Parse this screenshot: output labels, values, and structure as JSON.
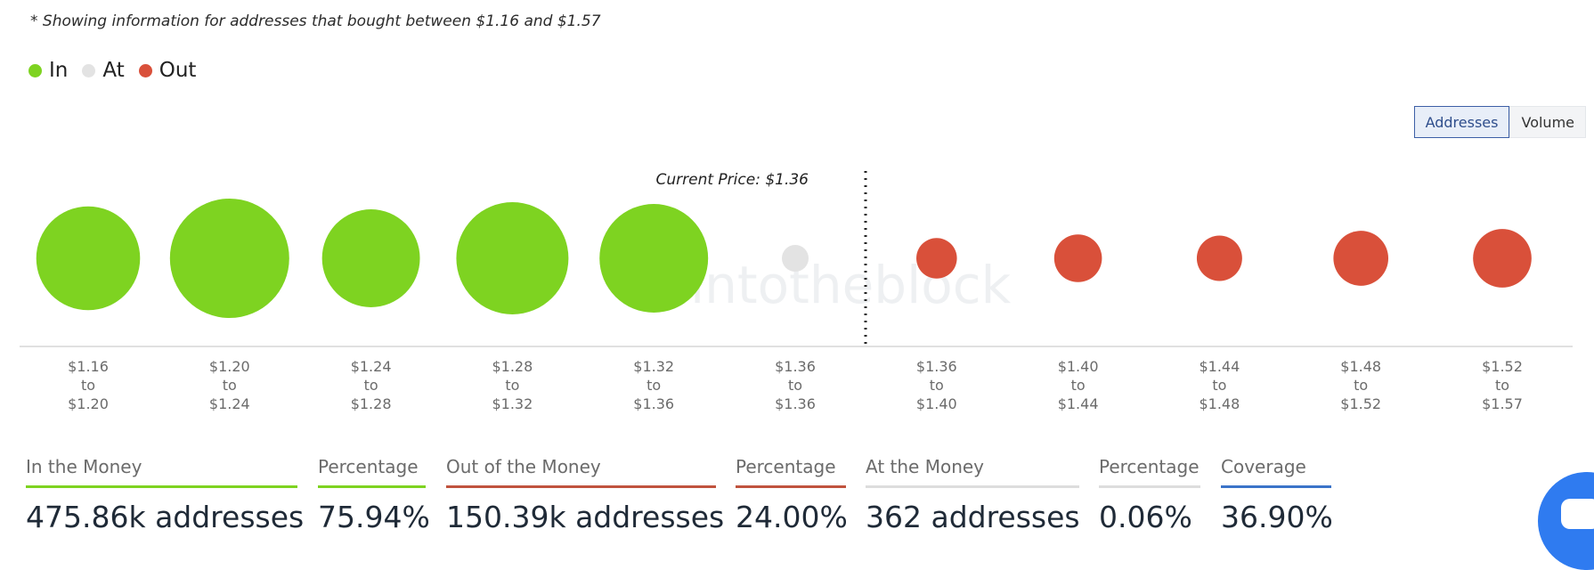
{
  "note": "* Showing information for addresses that bought between $1.16 and $1.57",
  "legend": [
    {
      "label": "In",
      "color": "#7ed321"
    },
    {
      "label": "At",
      "color": "#e3e3e3"
    },
    {
      "label": "Out",
      "color": "#d9503a"
    }
  ],
  "toggle": {
    "addresses_label": "Addresses",
    "volume_label": "Volume",
    "active": "addresses"
  },
  "watermark": "intotheblock",
  "chart_data": {
    "type": "bubble",
    "current_price_label": "Current Price: $1.36",
    "categories": [
      {
        "from": "$1.16",
        "to": "$1.20",
        "status": "in",
        "relative_size": 0.87
      },
      {
        "from": "$1.20",
        "to": "$1.24",
        "status": "in",
        "relative_size": 1.0
      },
      {
        "from": "$1.24",
        "to": "$1.28",
        "status": "in",
        "relative_size": 0.82
      },
      {
        "from": "$1.28",
        "to": "$1.32",
        "status": "in",
        "relative_size": 0.94
      },
      {
        "from": "$1.32",
        "to": "$1.36",
        "status": "in",
        "relative_size": 0.91
      },
      {
        "from": "$1.36",
        "to": "$1.36",
        "status": "at",
        "relative_size": 0.05
      },
      {
        "from": "$1.36",
        "to": "$1.40",
        "status": "out",
        "relative_size": 0.34
      },
      {
        "from": "$1.40",
        "to": "$1.44",
        "status": "out",
        "relative_size": 0.4
      },
      {
        "from": "$1.44",
        "to": "$1.48",
        "status": "out",
        "relative_size": 0.38
      },
      {
        "from": "$1.48",
        "to": "$1.52",
        "status": "out",
        "relative_size": 0.46
      },
      {
        "from": "$1.52",
        "to": "$1.57",
        "status": "out",
        "relative_size": 0.49
      }
    ],
    "tick_word": "to",
    "current_price_index": 6
  },
  "summary": [
    {
      "label": "In the Money",
      "value": "475.86k addresses",
      "color": "#7ed321"
    },
    {
      "label": "Percentage",
      "value": "75.94%",
      "color": "#7ed321"
    },
    {
      "label": "Out of the Money",
      "value": "150.39k addresses",
      "color": "#c0533e"
    },
    {
      "label": "Percentage",
      "value": "24.00%",
      "color": "#c0533e"
    },
    {
      "label": "At the Money",
      "value": "362 addresses",
      "color": "#dddddd"
    },
    {
      "label": "Percentage",
      "value": "0.06%",
      "color": "#dddddd"
    },
    {
      "label": "Coverage",
      "value": "36.90%",
      "color": "#3b74c9"
    }
  ]
}
